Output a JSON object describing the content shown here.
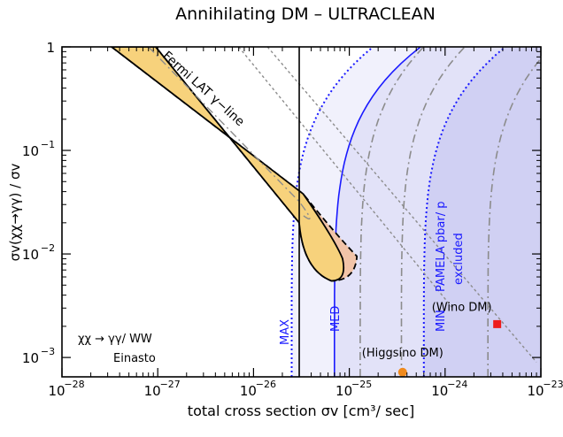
{
  "chart_data": {
    "type": "line",
    "title": "Annihilating DM – ULTRACLEAN",
    "xlabel": "total cross section σv [cm³/ sec]",
    "ylabel": "σv(χχ→γγ) / σv",
    "xscale": "log",
    "yscale": "log",
    "xlim": [
      1e-28,
      1e-23
    ],
    "ylim": [
      0.00065,
      1
    ],
    "x_ticks": [
      {
        "value": 1e-28,
        "exp": "−28"
      },
      {
        "value": 1e-27,
        "exp": "−27"
      },
      {
        "value": 1e-26,
        "exp": "−26"
      },
      {
        "value": 1e-25,
        "exp": "−25"
      },
      {
        "value": 1e-24,
        "exp": "−24"
      },
      {
        "value": 1e-23,
        "exp": "−23"
      }
    ],
    "y_ticks": [
      {
        "value": 1,
        "label": "1"
      },
      {
        "value": 0.1,
        "exp": "−1"
      },
      {
        "value": 0.01,
        "exp": "−2"
      },
      {
        "value": 0.001,
        "exp": "−3"
      }
    ],
    "fermi_band": {
      "label": "Fermi LAT γ−line",
      "fill": "#f7d27c",
      "outer_fill": "#f2c4a8",
      "upper_edge": [
        [
          3.3e-28,
          1
        ],
        [
          3.3e-26,
          0.038
        ],
        [
          7e-26,
          0.016
        ],
        [
          1.2e-25,
          0.0095
        ]
      ],
      "lower_edge": [
        [
          9.5e-28,
          1
        ],
        [
          3e-26,
          0.02
        ],
        [
          6.5e-26,
          0.007
        ]
      ],
      "tip": [
        [
          6.5e-26,
          0.0055
        ],
        [
          1.05e-25,
          0.006
        ],
        [
          1.2e-25,
          0.0095
        ]
      ]
    },
    "exclusion_regions": [
      {
        "name": "MAX",
        "color": "#1a1aff",
        "dash": "dotted",
        "fill": "#ececfb",
        "x_vertical": 2.5e-26,
        "x_asymptote": 2.5e-25
      },
      {
        "name": "MED",
        "color": "#1a1aff",
        "dash": "solid",
        "fill": "#dcdcf7",
        "x_vertical": 7e-26,
        "x_asymptote": 8e-25
      },
      {
        "name": "MIN",
        "color": "#1a1aff",
        "dash": "dotted",
        "fill": "#c9c9f2",
        "x_vertical": 6e-25,
        "x_asymptote": 6e-24
      }
    ],
    "region_label": [
      "PAMELA pbar/ p",
      "excluded"
    ],
    "vertical_line": {
      "x": 3e-26,
      "color": "#000000"
    },
    "gray_dashdot_x": [
      1.3e-25,
      3.5e-25,
      2.8e-24
    ],
    "gray_diagonals": [
      {
        "from": [
          7e-27,
          1
        ],
        "to": [
          1.2e-24,
          0.003
        ]
      },
      {
        "from": [
          1.4e-26,
          1
        ],
        "to": [
          9e-24,
          0.0009
        ]
      }
    ],
    "points": [
      {
        "name": "Higgsino DM",
        "label": "(Higgsino DM)",
        "x": 3.6e-25,
        "y": 0.00072,
        "color": "#f08a1c",
        "marker": "circle"
      },
      {
        "name": "Wino DM",
        "label": "(Wino DM)",
        "x": 3.5e-24,
        "y": 0.0021,
        "color": "#ee1c1c",
        "marker": "square"
      }
    ],
    "annotations": {
      "channel": "χχ → γγ/ WW",
      "profile": "Einasto"
    },
    "grid": false,
    "legend": "none"
  }
}
